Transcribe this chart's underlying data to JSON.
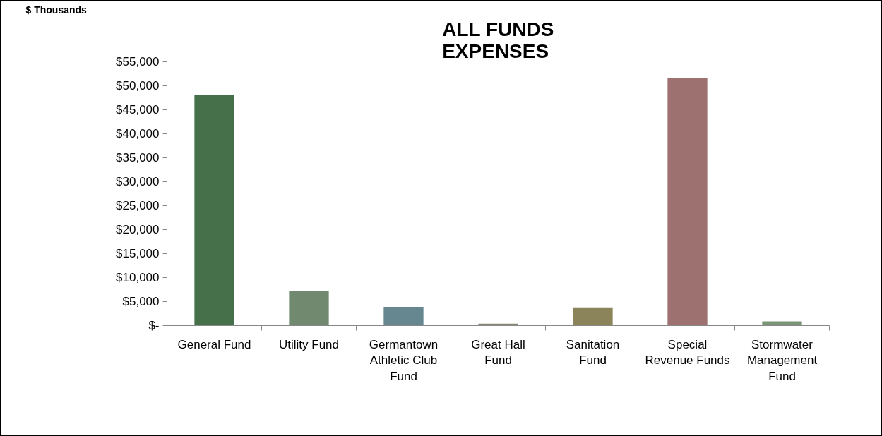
{
  "chart_data": {
    "type": "bar",
    "title": "ALL FUNDS EXPENSES",
    "annotations": [
      "$ Thousands"
    ],
    "categories": [
      "General Fund",
      "Utility Fund",
      "Germantown Athletic Club Fund",
      "Great Hall Fund",
      "Sanitation Fund",
      "Special Revenue Funds",
      "Stormwater Management Fund"
    ],
    "values": [
      48000,
      7200,
      3900,
      400,
      3800,
      51700,
      900
    ],
    "colors": [
      "#46704a",
      "#718a6f",
      "#66878f",
      "#8a8772",
      "#8b845b",
      "#9c7170",
      "#7a9478"
    ],
    "ylim": [
      0,
      55000
    ],
    "yticks": [
      {
        "value": 0,
        "label": "$-"
      },
      {
        "value": 5000,
        "label": "$5,000"
      },
      {
        "value": 10000,
        "label": "$10,000"
      },
      {
        "value": 15000,
        "label": "$15,000"
      },
      {
        "value": 20000,
        "label": "$20,000"
      },
      {
        "value": 25000,
        "label": "$25,000"
      },
      {
        "value": 30000,
        "label": "$30,000"
      },
      {
        "value": 35000,
        "label": "$35,000"
      },
      {
        "value": 40000,
        "label": "$40,000"
      },
      {
        "value": 45000,
        "label": "$45,000"
      },
      {
        "value": 50000,
        "label": "$50,000"
      },
      {
        "value": 55000,
        "label": "$55,000"
      }
    ],
    "grid": false
  }
}
